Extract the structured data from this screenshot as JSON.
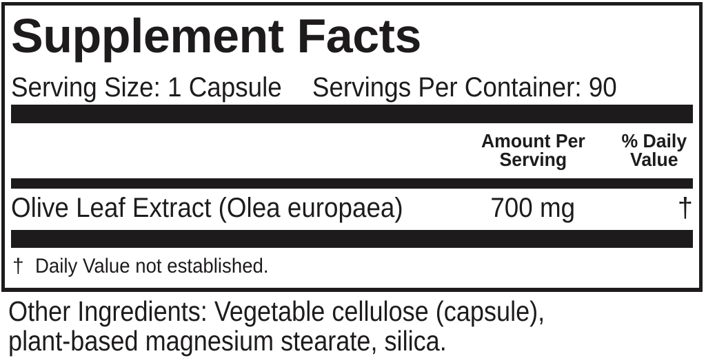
{
  "panel": {
    "title": "Supplement Facts",
    "serving_size": "Serving Size: 1 Capsule",
    "servings_per_container": "Servings Per Container: 90",
    "table": {
      "amount_header": "Amount Per\nServing",
      "dv_header": "% Daily\nValue",
      "rows": [
        {
          "name": "Olive Leaf Extract (Olea europaea)",
          "amount": "700 mg",
          "daily_value": "†"
        }
      ]
    },
    "footnote": {
      "symbol": "†",
      "text": "Daily Value not established."
    }
  },
  "other_ingredients": "Other Ingredients: Vegetable cellulose (capsule),\nplant-based magnesium stearate, silica.",
  "colors": {
    "ink": "#1d1b1c",
    "paper": "#ffffff"
  }
}
